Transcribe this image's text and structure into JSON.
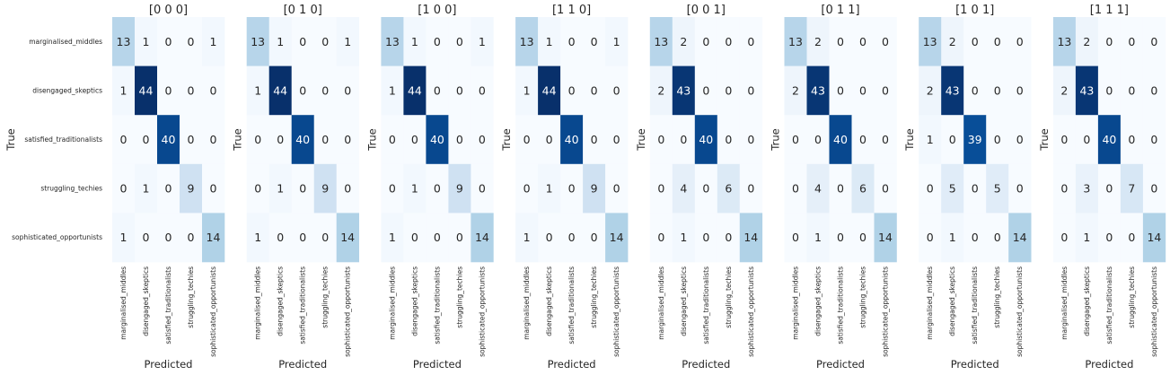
{
  "chart_data": {
    "type": "heatmap",
    "colormap": "Blues",
    "color_min": "#f7fbff",
    "color_max": "#08306b",
    "value_range": [
      0,
      44
    ],
    "xlabel": "Predicted",
    "ylabel": "True",
    "class_labels": [
      "marginalised_middles",
      "disengaged_skeptics",
      "satisfied_traditionalists",
      "struggling_techies",
      "sophisticated_opportunists"
    ],
    "panels": [
      {
        "title": "[0 0 0]",
        "matrix": [
          [
            13,
            1,
            0,
            0,
            1
          ],
          [
            1,
            44,
            0,
            0,
            0
          ],
          [
            0,
            0,
            40,
            0,
            0
          ],
          [
            0,
            1,
            0,
            9,
            0
          ],
          [
            1,
            0,
            0,
            0,
            14
          ]
        ]
      },
      {
        "title": "[0 1 0]",
        "matrix": [
          [
            13,
            1,
            0,
            0,
            1
          ],
          [
            1,
            44,
            0,
            0,
            0
          ],
          [
            0,
            0,
            40,
            0,
            0
          ],
          [
            0,
            1,
            0,
            9,
            0
          ],
          [
            1,
            0,
            0,
            0,
            14
          ]
        ]
      },
      {
        "title": "[1 0 0]",
        "matrix": [
          [
            13,
            1,
            0,
            0,
            1
          ],
          [
            1,
            44,
            0,
            0,
            0
          ],
          [
            0,
            0,
            40,
            0,
            0
          ],
          [
            0,
            1,
            0,
            9,
            0
          ],
          [
            1,
            0,
            0,
            0,
            14
          ]
        ]
      },
      {
        "title": "[1 1 0]",
        "matrix": [
          [
            13,
            1,
            0,
            0,
            1
          ],
          [
            1,
            44,
            0,
            0,
            0
          ],
          [
            0,
            0,
            40,
            0,
            0
          ],
          [
            0,
            1,
            0,
            9,
            0
          ],
          [
            1,
            0,
            0,
            0,
            14
          ]
        ]
      },
      {
        "title": "[0 0 1]",
        "matrix": [
          [
            13,
            2,
            0,
            0,
            0
          ],
          [
            2,
            43,
            0,
            0,
            0
          ],
          [
            0,
            0,
            40,
            0,
            0
          ],
          [
            0,
            4,
            0,
            6,
            0
          ],
          [
            0,
            1,
            0,
            0,
            14
          ]
        ]
      },
      {
        "title": "[0 1 1]",
        "matrix": [
          [
            13,
            2,
            0,
            0,
            0
          ],
          [
            2,
            43,
            0,
            0,
            0
          ],
          [
            0,
            0,
            40,
            0,
            0
          ],
          [
            0,
            4,
            0,
            6,
            0
          ],
          [
            0,
            1,
            0,
            0,
            14
          ]
        ]
      },
      {
        "title": "[1 0 1]",
        "matrix": [
          [
            13,
            2,
            0,
            0,
            0
          ],
          [
            2,
            43,
            0,
            0,
            0
          ],
          [
            1,
            0,
            39,
            0,
            0
          ],
          [
            0,
            5,
            0,
            5,
            0
          ],
          [
            0,
            1,
            0,
            0,
            14
          ]
        ]
      },
      {
        "title": "[1 1 1]",
        "matrix": [
          [
            13,
            2,
            0,
            0,
            0
          ],
          [
            2,
            43,
            0,
            0,
            0
          ],
          [
            0,
            0,
            40,
            0,
            0
          ],
          [
            0,
            3,
            0,
            7,
            0
          ],
          [
            0,
            1,
            0,
            0,
            14
          ]
        ]
      }
    ]
  }
}
